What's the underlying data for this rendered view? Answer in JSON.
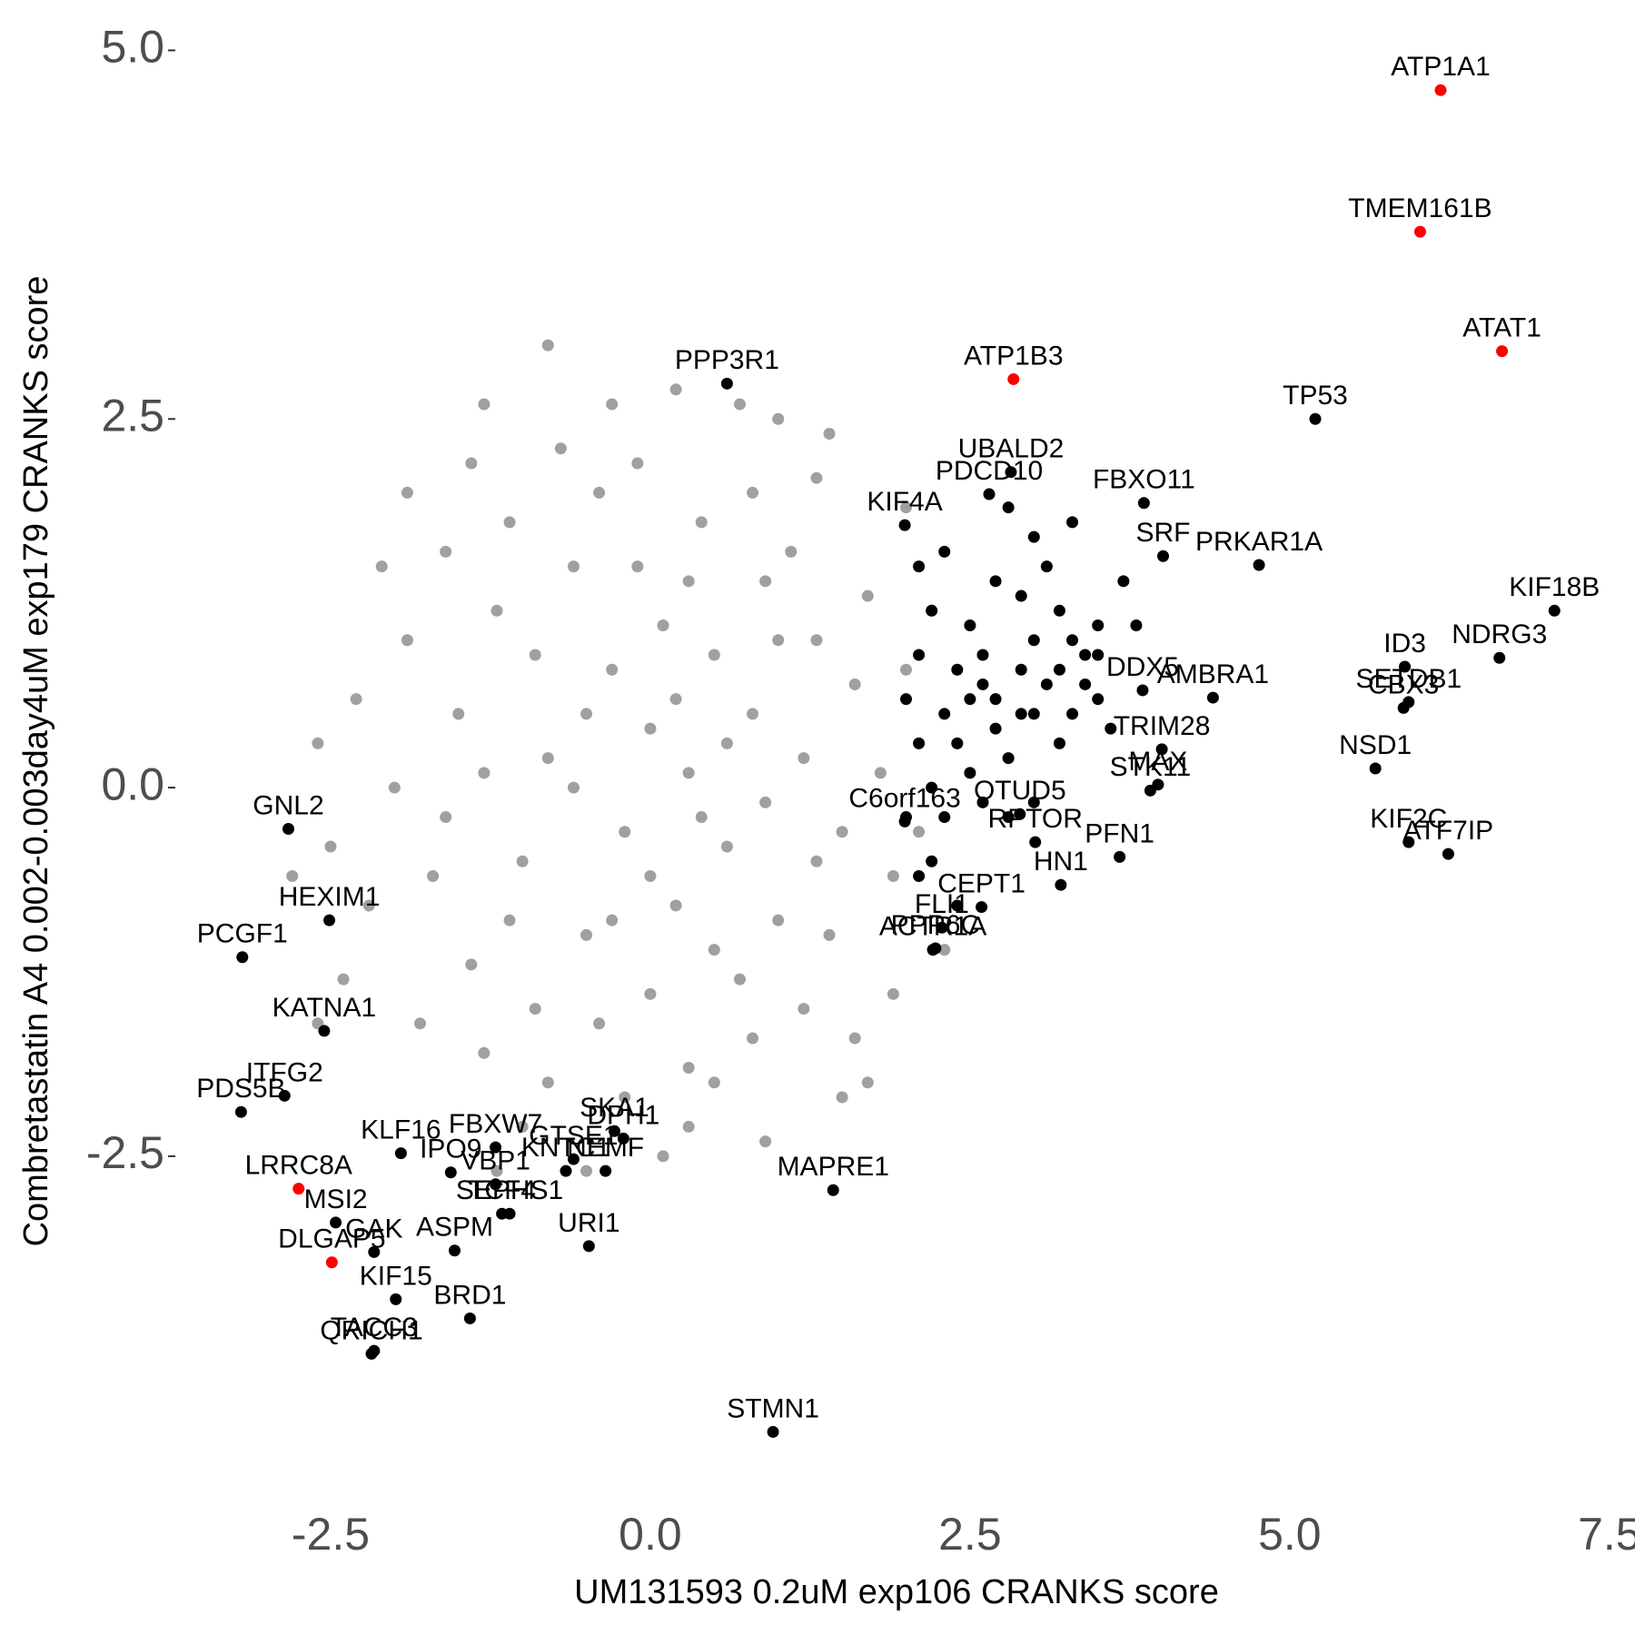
{
  "chart_data": {
    "type": "scatter",
    "x_label": "UM131593 0.2uM exp106 CRANKS score",
    "y_label": "Combretastatin A4 0.002-0.003day4uM exp179 CRANKS score",
    "xlim": [
      -3.7,
      7.7
    ],
    "ylim": [
      -4.7,
      5.2
    ],
    "xticks": [
      -2.5,
      {
        "value": 0,
        "label": "0.0"
      },
      2.5,
      {
        "value": 5,
        "label": "5.0"
      },
      7.5
    ],
    "yticks": [
      {
        "value": -2.5,
        "label": "-2.5"
      },
      {
        "value": 0,
        "label": "0.0"
      },
      2.5,
      {
        "value": 5,
        "label": "5.0"
      }
    ],
    "grid": false,
    "series": [
      {
        "color": "#a0a0a0",
        "x": [
          -1.5,
          -1.2,
          -1.0,
          -0.8,
          -0.6,
          -0.5,
          -0.3,
          -0.2,
          0,
          0.1,
          0.2,
          0.3,
          0.5,
          0.6,
          0.8,
          0.9,
          1.0,
          1.2,
          1.3,
          1.5,
          1.6,
          -1.7,
          -1.4,
          -1.1,
          -0.9,
          -0.4,
          0.0,
          0.4,
          0.7,
          1.1,
          1.4,
          1.8,
          -2.0,
          -1.9,
          -1.6,
          -1.3,
          -0.7,
          -0.1,
          0.3,
          0.8,
          1.2,
          1.7,
          1.9,
          -2.2,
          -2.3,
          -0.8,
          -0.2,
          0.5,
          1.0,
          -0.8,
          0.7,
          -1.0,
          0.1,
          1.3,
          2.0,
          2.1,
          1.9,
          2.3,
          2.2,
          -2.4,
          -2.6,
          -2.5,
          -1.8,
          -1.9,
          -2.1,
          -0.3,
          0.2,
          -0.6,
          0.9,
          -1.3,
          0.4,
          1.3,
          -0.9,
          0.6,
          -0.1,
          0.0,
          1.0,
          -1.1,
          -0.4,
          0.3,
          1.6,
          -1.6,
          0.5,
          -0.5,
          0.2,
          -0.3,
          1.4,
          -1.4,
          -2.8,
          -2.6,
          -1.2,
          0.3,
          0.8,
          1.5,
          2.4,
          2.0,
          -1.3,
          1.7,
          -0.5,
          0.9
        ],
        "y": [
          0.5,
          1.2,
          -0.5,
          0.2,
          1.5,
          -1.0,
          0.8,
          -0.3,
          0.4,
          1.1,
          -0.8,
          0.1,
          0.9,
          -0.4,
          0.5,
          1.4,
          -0.9,
          0.2,
          1.0,
          -0.3,
          0.7,
          -0.6,
          -1.2,
          1.8,
          -1.5,
          2.0,
          -1.4,
          1.8,
          -1.3,
          1.6,
          -1.0,
          0.1,
          0.0,
          1.0,
          1.6,
          -1.8,
          2.3,
          2.2,
          -1.9,
          2.0,
          -1.5,
          1.3,
          -0.6,
          -0.8,
          0.6,
          -2.0,
          -2.1,
          -2.0,
          2.5,
          3.0,
          2.6,
          -2.3,
          -2.5,
          2.1,
          0.8,
          -0.3,
          -1.4,
          -1.1,
          1.2,
          -1.3,
          0.3,
          -0.4,
          -1.6,
          2.0,
          1.5,
          -0.9,
          0.6,
          0.0,
          -0.1,
          0.1,
          -0.2,
          -0.5,
          0.9,
          0.3,
          1.5,
          -0.6,
          1.0,
          -0.9,
          -1.6,
          1.4,
          -1.7,
          -0.2,
          -1.1,
          0.5,
          2.7,
          2.6,
          2.4,
          2.2,
          -0.6,
          -1.6,
          -2.6,
          -2.3,
          -1.7,
          -2.1,
          0.3,
          1.9,
          2.6,
          -2.0,
          -2.6,
          -2.4
        ]
      },
      {
        "color": "#000000",
        "x": [
          2.1,
          2.2,
          2.3,
          2.4,
          2.5,
          2.6,
          2.7,
          2.8,
          2.9,
          3.0,
          3.1,
          3.2,
          3.3,
          3.4,
          3.5,
          3.6,
          3.7,
          3.8,
          2.1,
          2.2,
          2.3,
          2.4,
          2.5,
          2.6,
          2.7,
          2.8,
          2.9,
          3.0,
          3.2,
          3.4,
          2.0,
          2.1,
          2.3,
          2.5,
          2.7,
          3.0,
          3.3,
          3.5,
          2.2,
          2.4,
          2.0,
          2.1,
          3.1,
          2.9,
          3.2,
          3.5,
          2.6,
          2.8,
          3.0,
          3.3
        ],
        "y": [
          1.5,
          1.2,
          1.6,
          0.8,
          1.1,
          0.9,
          0.6,
          1.9,
          1.3,
          1.0,
          0.7,
          1.2,
          0.5,
          0.9,
          0.6,
          0.4,
          1.4,
          1.1,
          0.3,
          0.0,
          -0.2,
          0.3,
          0.1,
          -0.1,
          0.4,
          0.2,
          0.5,
          -0.1,
          0.3,
          0.7,
          0.6,
          0.9,
          0.5,
          0.6,
          1.4,
          1.7,
          1.8,
          1.1,
          -0.5,
          -0.8,
          -0.2,
          -0.6,
          1.5,
          0.8,
          0.8,
          0.9,
          0.7,
          -0.2,
          0.5,
          1.0
        ]
      },
      {
        "color": "#000000",
        "labels": [
          "PPP3R1",
          "TP53",
          "UBALD2",
          "PDCD10",
          "FBXO11",
          "KIF4A",
          "PRKAR1A",
          "SRF",
          "KIF18B",
          "NDRG3",
          "ID3",
          "AMBRA1",
          "DDX5",
          "CBX3",
          "SETDB1",
          "NSD1",
          "TRIM28",
          "MAX",
          "STK11",
          "KIF2C",
          "ATF7IP",
          "OTUD5",
          "C6orf163",
          "RPTOR",
          "PFN1",
          "HN1",
          "CEPT1",
          "FLI1",
          "PPP6C",
          "ACTR1A",
          "GNL2",
          "HEXIM1",
          "PCGF1",
          "KATNA1",
          "ITFG2",
          "PDS5B",
          "KLF16",
          "IPO9",
          "FBXW7",
          "VBP1",
          "GTSE1",
          "SKA1",
          "DPH1",
          "NEMF",
          "KNTC1",
          "ASPM",
          "TCF4",
          "URI1",
          "SEPHS1",
          "MSI2",
          "GAK",
          "KIF15",
          "BRD1",
          "TACC3",
          "QRICH1",
          "MAPRE1",
          "STMN1"
        ],
        "x": [
          0.6,
          5.2,
          2.82,
          2.65,
          3.86,
          1.99,
          4.76,
          4.01,
          7.07,
          6.64,
          5.9,
          4.4,
          3.85,
          5.89,
          5.93,
          5.67,
          4.0,
          3.97,
          3.91,
          5.93,
          6.24,
          2.89,
          1.99,
          3.01,
          3.67,
          3.21,
          2.59,
          2.28,
          2.23,
          2.21,
          -2.83,
          -2.51,
          -3.19,
          -2.55,
          -2.86,
          -3.2,
          -1.95,
          -1.56,
          -1.21,
          -1.21,
          -0.6,
          -0.28,
          -0.21,
          -0.35,
          -0.66,
          -1.53,
          -1.16,
          -0.48,
          -1.1,
          -2.46,
          -2.16,
          -1.99,
          -1.41,
          -2.16,
          -2.18,
          1.43,
          0.96
        ],
        "y": [
          2.74,
          2.5,
          2.14,
          1.99,
          1.93,
          1.78,
          1.51,
          1.57,
          1.2,
          0.88,
          0.82,
          0.61,
          0.66,
          0.54,
          0.58,
          0.13,
          0.26,
          0.02,
          -0.02,
          -0.37,
          -0.45,
          -0.18,
          -0.23,
          -0.37,
          -0.47,
          -0.66,
          -0.81,
          -0.95,
          -1.09,
          -1.1,
          -0.28,
          -0.9,
          -1.15,
          -1.65,
          -2.09,
          -2.2,
          -2.48,
          -2.61,
          -2.44,
          -2.69,
          -2.52,
          -2.33,
          -2.38,
          -2.6,
          -2.6,
          -3.14,
          -2.89,
          -3.11,
          -2.89,
          -2.95,
          -3.15,
          -3.47,
          -3.6,
          -3.82,
          -3.84,
          -2.73,
          -4.37
        ]
      },
      {
        "color": "#ff0000",
        "labels": [
          "ATP1A1",
          "TMEM161B",
          "ATAT1",
          "ATP1B3",
          "LRRC8A",
          "DLGAP5"
        ],
        "x": [
          6.18,
          6.02,
          6.66,
          2.84,
          -2.75,
          -2.49
        ],
        "y": [
          4.73,
          3.77,
          2.96,
          2.77,
          -2.72,
          -3.22
        ]
      }
    ]
  }
}
